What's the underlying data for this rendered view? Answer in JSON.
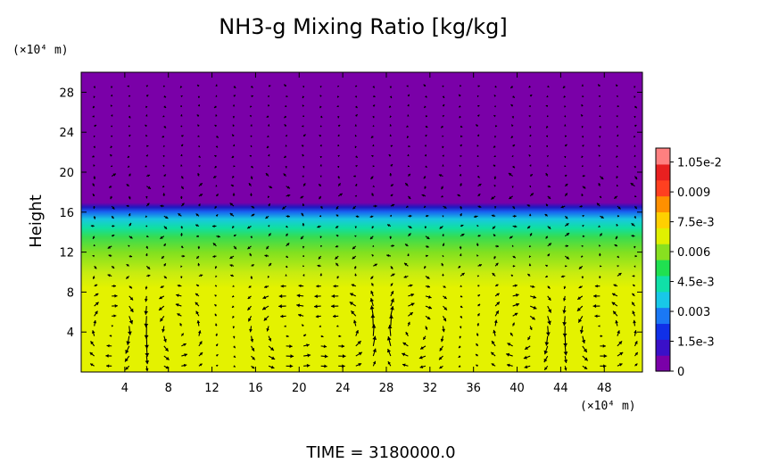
{
  "chart_data": {
    "type": "heatmap",
    "title": "NH3-g Mixing Ratio [kg/kg]",
    "xlabel": "",
    "ylabel": "Height",
    "x_unit_label": "(×10⁴ m)",
    "y_unit_label": "(×10⁴ m)",
    "x_ticks": [
      4,
      8,
      12,
      16,
      20,
      24,
      28,
      32,
      36,
      40,
      44,
      48
    ],
    "y_ticks": [
      4,
      8,
      12,
      16,
      20,
      24,
      28
    ],
    "xlim": [
      0,
      51.5
    ],
    "ylim": [
      0,
      30
    ],
    "footer": "TIME = 3180000.0",
    "overlay": "velocity vectors (arrows)",
    "colorbar": {
      "min": 0,
      "max": 0.0112,
      "tick_labels": [
        "0",
        "1.5e-3",
        "0.003",
        "4.5e-3",
        "0.006",
        "7.5e-3",
        "0.009",
        "1.05e-2"
      ],
      "tick_values": [
        0,
        0.0015,
        0.003,
        0.0045,
        0.006,
        0.0075,
        0.009,
        0.0105
      ],
      "colors": [
        "#7a00a8",
        "#3a10c8",
        "#1030e8",
        "#1a78f5",
        "#18c8e8",
        "#10e0a8",
        "#20e050",
        "#88e020",
        "#e0f000",
        "#ffd000",
        "#ff9000",
        "#ff4020",
        "#e82020",
        "#ff8080"
      ]
    },
    "profile": [
      {
        "height": 0,
        "value": 0.0079
      },
      {
        "height": 9,
        "value": 0.0079
      },
      {
        "height": 10,
        "value": 0.0073
      },
      {
        "height": 12,
        "value": 0.0066
      },
      {
        "height": 13,
        "value": 0.0058
      },
      {
        "height": 14,
        "value": 0.0052
      },
      {
        "height": 15,
        "value": 0.0047
      },
      {
        "height": 16,
        "value": 0.0038
      },
      {
        "height": 16.5,
        "value": 0.0015
      },
      {
        "height": 17,
        "value": 0
      },
      {
        "height": 30,
        "value": 0
      }
    ]
  }
}
